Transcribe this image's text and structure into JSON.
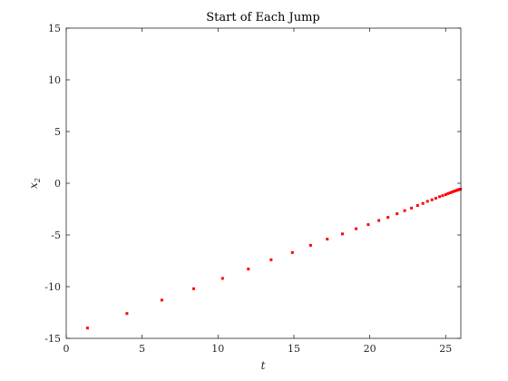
{
  "chart_data": {
    "type": "scatter",
    "title": "Start of Each Jump",
    "xlabel": "t",
    "ylabel": "x",
    "ylabel_subscript": "2",
    "xlim": [
      0,
      26
    ],
    "ylim": [
      -15,
      15
    ],
    "xticks": [
      0,
      5,
      10,
      15,
      20,
      25
    ],
    "yticks": [
      -15,
      -10,
      -5,
      0,
      5,
      10,
      15
    ],
    "grid": false,
    "marker_color": "#ff0000",
    "series": [
      {
        "points": [
          [
            1.4,
            -14.0
          ],
          [
            4.0,
            -12.6
          ],
          [
            6.3,
            -11.3
          ],
          [
            8.4,
            -10.2
          ],
          [
            10.3,
            -9.2
          ],
          [
            12.0,
            -8.3
          ],
          [
            13.5,
            -7.4
          ],
          [
            14.9,
            -6.7
          ],
          [
            16.1,
            -6.0
          ],
          [
            17.2,
            -5.4
          ],
          [
            18.2,
            -4.9
          ],
          [
            19.1,
            -4.4
          ],
          [
            19.9,
            -4.0
          ],
          [
            20.6,
            -3.6
          ],
          [
            21.2,
            -3.3
          ],
          [
            21.8,
            -2.95
          ],
          [
            22.3,
            -2.65
          ],
          [
            22.75,
            -2.4
          ],
          [
            23.15,
            -2.15
          ],
          [
            23.5,
            -1.95
          ],
          [
            23.8,
            -1.75
          ],
          [
            24.1,
            -1.6
          ],
          [
            24.35,
            -1.45
          ],
          [
            24.6,
            -1.3
          ],
          [
            24.8,
            -1.2
          ],
          [
            25.0,
            -1.1
          ],
          [
            25.15,
            -1.0
          ],
          [
            25.3,
            -0.92
          ],
          [
            25.42,
            -0.85
          ],
          [
            25.53,
            -0.79
          ],
          [
            25.63,
            -0.74
          ],
          [
            25.72,
            -0.69
          ],
          [
            25.8,
            -0.65
          ],
          [
            25.87,
            -0.62
          ],
          [
            25.93,
            -0.59
          ],
          [
            25.98,
            -0.57
          ]
        ]
      }
    ]
  }
}
